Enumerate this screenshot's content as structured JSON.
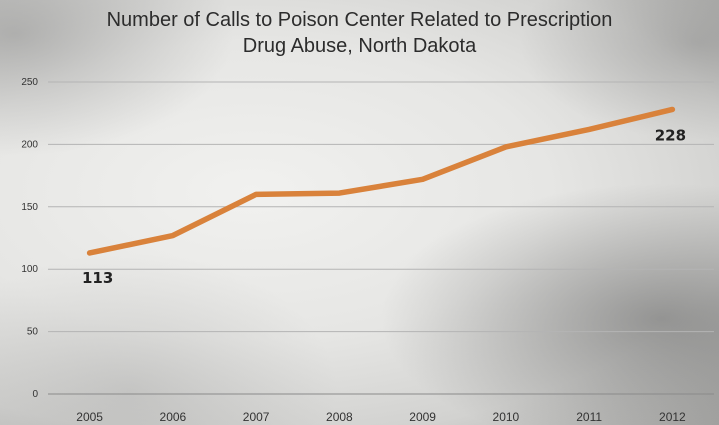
{
  "chart_data": {
    "type": "line",
    "title_line1": "Number of Calls to Poison Center Related to Prescription",
    "title_line2": "Drug Abuse, North Dakota",
    "categories": [
      "2005",
      "2006",
      "2007",
      "2008",
      "2009",
      "2010",
      "2011",
      "2012"
    ],
    "series": [
      {
        "values": [
          113,
          127,
          160,
          161,
          172,
          198,
          212,
          228
        ]
      }
    ],
    "data_labels": [
      {
        "index": 0,
        "text": "113"
      },
      {
        "index": 7,
        "text": "228"
      }
    ],
    "ylim": [
      0,
      250
    ],
    "yticks": [
      "0",
      "50",
      "100",
      "150",
      "200",
      "250"
    ],
    "grid": "horizontal",
    "line_color": "#d9823b"
  }
}
